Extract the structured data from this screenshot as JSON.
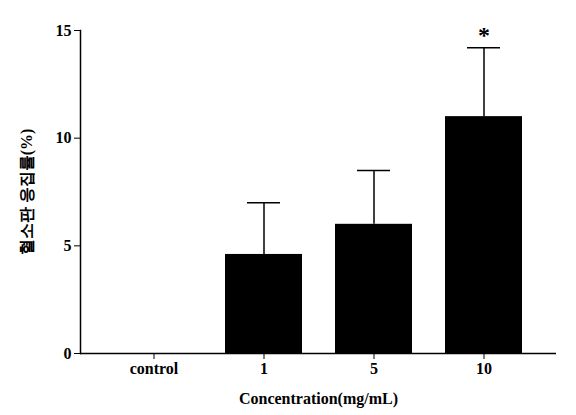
{
  "chart_data": {
    "type": "bar",
    "x_label": "Concentration(mg/mL)",
    "y_label": "혈소판 응집률(%)",
    "categories": [
      "control",
      "1",
      "5",
      "10"
    ],
    "values": [
      0,
      4.6,
      6.0,
      11.0
    ],
    "errors": [
      null,
      2.4,
      2.5,
      3.2
    ],
    "color": "#000000",
    "ylim": [
      0,
      15
    ],
    "yticks": [
      0,
      5,
      10,
      15
    ],
    "grid": false,
    "annotations": [
      {
        "text": "*",
        "category": "10"
      }
    ]
  }
}
